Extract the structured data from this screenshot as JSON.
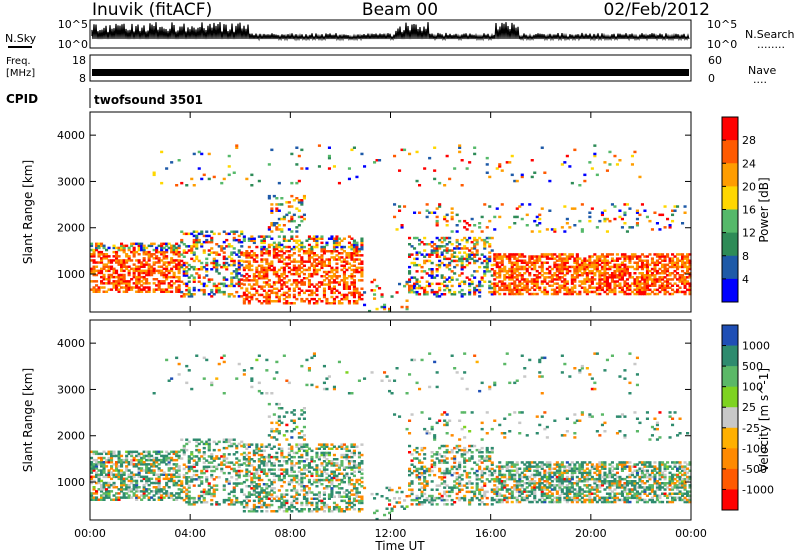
{
  "header": {
    "station": "Inuvik (fitACF)",
    "beam": "Beam 00",
    "date": "02/Feb/2012"
  },
  "panels": {
    "nsky": {
      "label": "N.Sky",
      "ticks": [
        "10^5",
        "10^0"
      ],
      "right_label": "N.Search",
      "right_ticks": [
        "10^5",
        "10^0"
      ],
      "right_marker": "........"
    },
    "freq": {
      "label_line1": "Freq.",
      "label_line2": "[MHz]",
      "ticks": [
        "18",
        "8"
      ],
      "right_label": "Nave",
      "right_ticks": [
        "60",
        "0"
      ],
      "right_marker": "...."
    },
    "cpid": {
      "label": "CPID",
      "value": "twofsound 3501"
    }
  },
  "colors": {
    "power": [
      "#0000ff",
      "#1e5aa8",
      "#2e8b57",
      "#55b96a",
      "#ffd700",
      "#ff9d00",
      "#ff5a00",
      "#ff0000"
    ],
    "velocity": [
      "#1f4fb5",
      "#2e8b6e",
      "#5bb867",
      "#7ed321",
      "#c8c8c8",
      "#ffb000",
      "#ff8a00",
      "#ff5a00",
      "#ff0000"
    ]
  },
  "chart_data": [
    {
      "type": "heatmap",
      "title": "",
      "xlabel": "",
      "ylabel": "Slant Range [km]",
      "x_ticks": [
        "00:00",
        "04:00",
        "08:00",
        "12:00",
        "16:00",
        "20:00",
        "00:00"
      ],
      "xlim_hours": [
        0,
        24
      ],
      "ylim_km": [
        180,
        4500
      ],
      "y_ticks": [
        1000,
        2000,
        3000,
        4000
      ],
      "colorbar": {
        "label": "Power [dB]",
        "tick_labels": [
          "28",
          "24",
          "20",
          "16",
          "12",
          "8",
          "4"
        ],
        "range": [
          0,
          32
        ]
      }
    },
    {
      "type": "heatmap",
      "title": "",
      "xlabel": "Time UT",
      "ylabel": "Slant Range [km]",
      "x_ticks": [
        "00:00",
        "04:00",
        "08:00",
        "12:00",
        "16:00",
        "20:00",
        "00:00"
      ],
      "xlim_hours": [
        0,
        24
      ],
      "ylim_km": [
        180,
        4500
      ],
      "y_ticks": [
        1000,
        2000,
        3000,
        4000
      ],
      "colorbar": {
        "label": "Velocity [m s^-1]",
        "tick_labels": [
          "1000",
          "500",
          "100",
          "25",
          "-25",
          "-100",
          "-500",
          "-1000"
        ],
        "range": [
          -1000,
          1000
        ]
      }
    }
  ]
}
